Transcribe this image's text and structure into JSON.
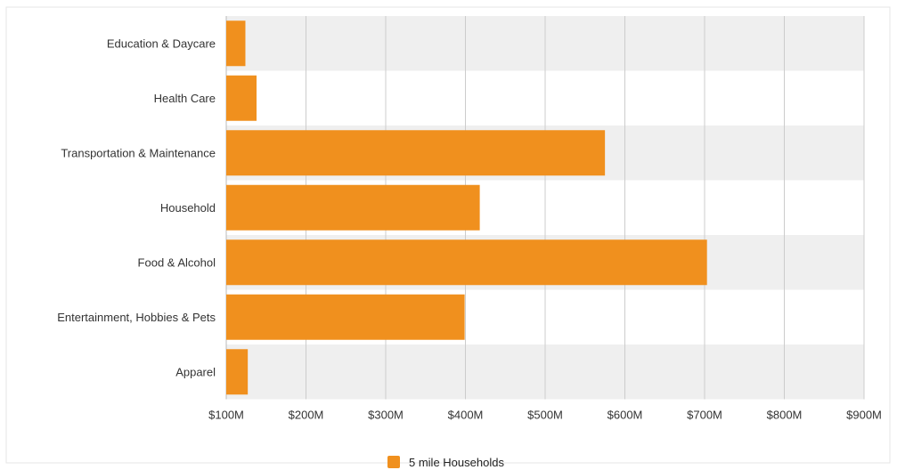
{
  "chart_data": {
    "type": "bar",
    "orientation": "horizontal",
    "categories": [
      "Education & Daycare",
      "Health Care",
      "Transportation & Maintenance",
      "Household",
      "Food & Alcohol",
      "Entertainment, Hobbies & Pets",
      "Apparel"
    ],
    "series": [
      {
        "name": "5 mile Households",
        "color": "#f0901e",
        "values": [
          124,
          138,
          575,
          418,
          703,
          399,
          127
        ]
      }
    ],
    "xlim": [
      100,
      900
    ],
    "x_ticks": [
      100,
      200,
      300,
      400,
      500,
      600,
      700,
      800,
      900
    ],
    "x_tick_labels": [
      "$100M",
      "$200M",
      "$300M",
      "$400M",
      "$500M",
      "$600M",
      "$700M",
      "$800M",
      "$900M"
    ],
    "grid": true,
    "band_colors": [
      "#efefef",
      "#ffffff"
    ],
    "legend_position": "bottom-center"
  }
}
